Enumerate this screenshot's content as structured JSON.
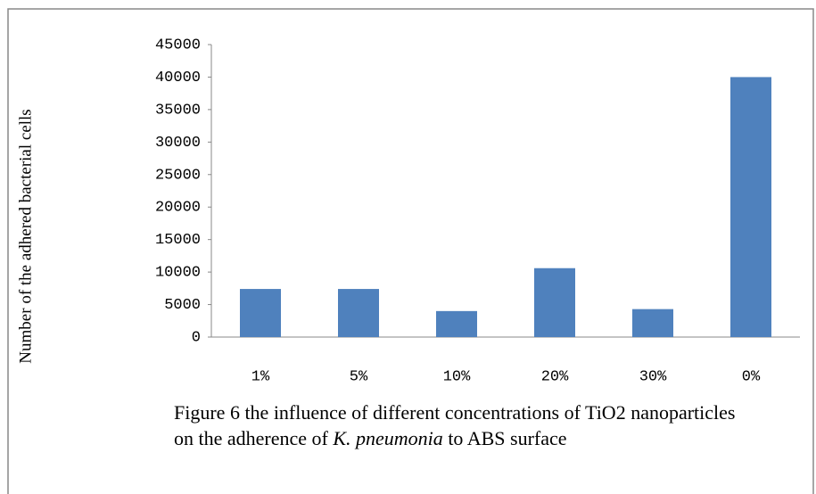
{
  "chart_data": {
    "type": "bar",
    "y_label": "Number of the adhered bacterial cells",
    "categories": [
      "1%",
      "5%",
      "10%",
      "20%",
      "30%",
      "0%"
    ],
    "values": [
      7400,
      7400,
      4000,
      10600,
      4300,
      40000
    ],
    "color": "#4f81bd",
    "ylim": [
      0,
      45000
    ],
    "yticks": [
      0,
      5000,
      10000,
      15000,
      20000,
      25000,
      30000,
      35000,
      40000,
      45000
    ],
    "grid": false,
    "caption": [
      "Figure  6 the influence of different concentrations of TiO2  nanoparticles on the adherence of ",
      "K. pneumonia",
      " to ABS surface"
    ]
  }
}
